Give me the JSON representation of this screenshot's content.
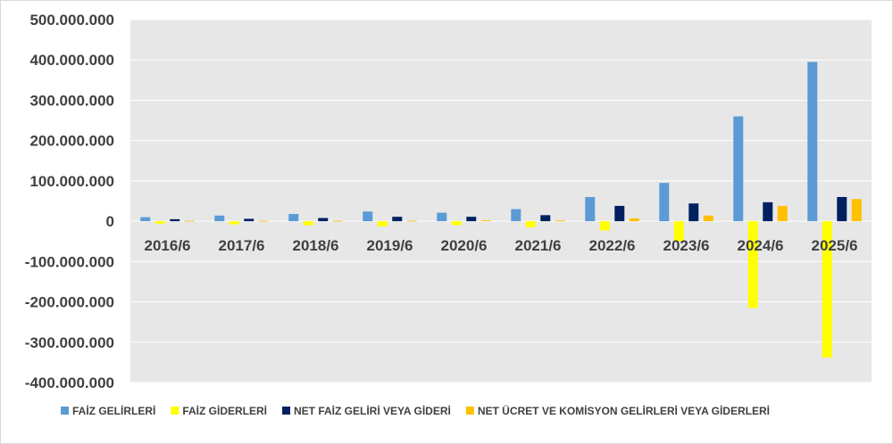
{
  "chart_data": {
    "type": "bar",
    "title": "",
    "xlabel": "",
    "ylabel": "",
    "categories": [
      "2016/6",
      "2017/6",
      "2018/6",
      "2019/6",
      "2020/6",
      "2021/6",
      "2022/6",
      "2023/6",
      "2024/6",
      "2025/6"
    ],
    "ylim": [
      -400000000,
      500000000
    ],
    "yticks": [
      500000000,
      400000000,
      300000000,
      200000000,
      100000000,
      0,
      -100000000,
      -200000000,
      -300000000,
      -400000000
    ],
    "ytick_labels": [
      "500.000.000",
      "400.000.000",
      "300.000.000",
      "200.000.000",
      "100.000.000",
      "0",
      "-100.000.000",
      "-200.000.000",
      "-300.000.000",
      "-400.000.000"
    ],
    "grid": "horizontal",
    "legend_position": "bottom",
    "series": [
      {
        "name": "FAİZ GELİRLERİ",
        "color": "#5b9bd5",
        "values": [
          10000000,
          14000000,
          18000000,
          24000000,
          21000000,
          30000000,
          60000000,
          95000000,
          260000000,
          395000000
        ]
      },
      {
        "name": "FAİZ GİDERLERİ",
        "color": "#ffff00",
        "values": [
          -6000000,
          -8000000,
          -10000000,
          -13000000,
          -10000000,
          -15000000,
          -23000000,
          -50000000,
          -215000000,
          -338000000
        ]
      },
      {
        "name": "NET FAİZ GELİRİ VEYA GİDERİ",
        "color": "#002060",
        "values": [
          5000000,
          6000000,
          8000000,
          11000000,
          11000000,
          15000000,
          38000000,
          44000000,
          47000000,
          60000000
        ]
      },
      {
        "name": "NET ÜCRET VE KOMİSYON GELİRLERİ VEYA GİDERLERİ",
        "color": "#ffc000",
        "values": [
          1000000,
          1000000,
          1000000,
          1000000,
          2000000,
          2000000,
          7000000,
          14000000,
          38000000,
          55000000
        ]
      }
    ]
  }
}
